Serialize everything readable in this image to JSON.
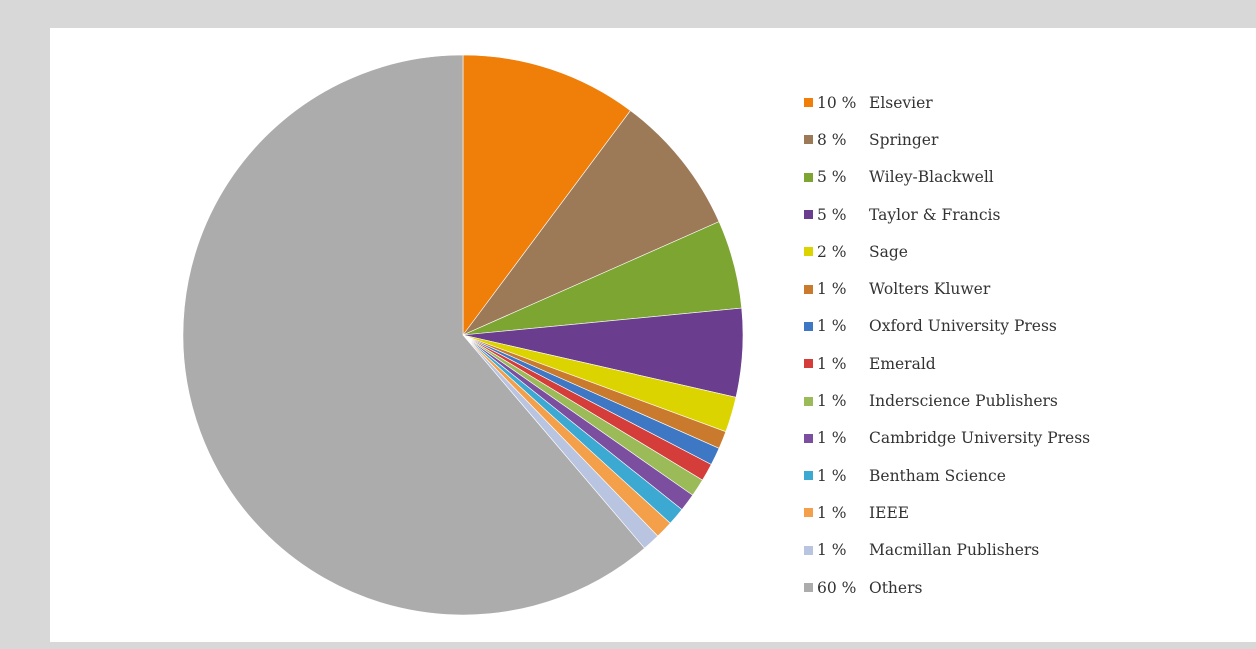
{
  "chart_data": {
    "type": "pie",
    "title": "",
    "start_angle": "12 o'clock",
    "direction": "clockwise",
    "legend_position": "right",
    "slices": [
      {
        "label": "Elsevier",
        "pct_label": "10 %",
        "value": 10,
        "color": "#f07f09"
      },
      {
        "label": "Springer",
        "pct_label": "8 %",
        "value": 8,
        "color": "#9c7a58"
      },
      {
        "label": "Wiley-Blackwell",
        "pct_label": "5 %",
        "value": 5,
        "color": "#7da532"
      },
      {
        "label": "Taylor & Francis",
        "pct_label": "5 %",
        "value": 5,
        "color": "#6b3d8e"
      },
      {
        "label": "Sage",
        "pct_label": "2 %",
        "value": 2,
        "color": "#dcd400"
      },
      {
        "label": "Wolters Kluwer",
        "pct_label": "1 %",
        "value": 1,
        "color": "#c97a2c"
      },
      {
        "label": "Oxford University Press",
        "pct_label": "1 %",
        "value": 1,
        "color": "#3e78c4"
      },
      {
        "label": "Emerald",
        "pct_label": "1 %",
        "value": 1,
        "color": "#d43d3a"
      },
      {
        "label": "Inderscience Publishers",
        "pct_label": "1 %",
        "value": 1,
        "color": "#9bbb59"
      },
      {
        "label": "Cambridge University Press",
        "pct_label": "1 %",
        "value": 1,
        "color": "#7b4ea0"
      },
      {
        "label": "Bentham Science",
        "pct_label": "1 %",
        "value": 1,
        "color": "#3ca9d3"
      },
      {
        "label": "IEEE",
        "pct_label": "1 %",
        "value": 1,
        "color": "#f4a04a"
      },
      {
        "label": "Macmillan Publishers",
        "pct_label": "1 %",
        "value": 1,
        "color": "#b8c4e0"
      },
      {
        "label": "Others",
        "pct_label": "60 %",
        "value": 60,
        "color": "#acacac"
      }
    ]
  }
}
